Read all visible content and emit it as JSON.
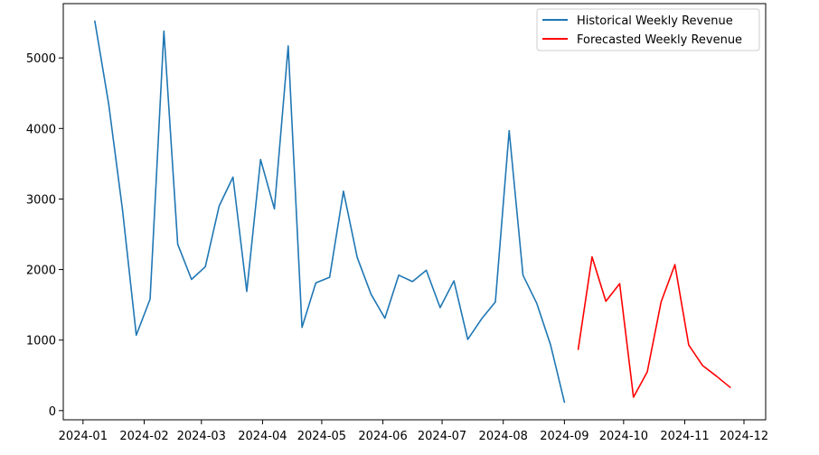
{
  "chart_data": {
    "type": "line",
    "xlabel": "",
    "ylabel": "",
    "x_axis_type": "date",
    "x_ticks": [
      "2024-01",
      "2024-02",
      "2024-03",
      "2024-04",
      "2024-05",
      "2024-06",
      "2024-07",
      "2024-08",
      "2024-09",
      "2024-10",
      "2024-11",
      "2024-12"
    ],
    "y_ticks": [
      0,
      1000,
      2000,
      3000,
      4000,
      5000
    ],
    "xlim": [
      "2023-12-22",
      "2024-12-12"
    ],
    "ylim": [
      -130,
      5770
    ],
    "grid": false,
    "legend_position": "top-right",
    "series": [
      {
        "name": "Historical Weekly Revenue",
        "color": "#1f77b4",
        "points": [
          [
            "2024-01-07",
            5520
          ],
          [
            "2024-01-14",
            4350
          ],
          [
            "2024-01-21",
            2850
          ],
          [
            "2024-01-28",
            1070
          ],
          [
            "2024-02-04",
            1580
          ],
          [
            "2024-02-11",
            5380
          ],
          [
            "2024-02-18",
            2360
          ],
          [
            "2024-02-25",
            1860
          ],
          [
            "2024-03-03",
            2040
          ],
          [
            "2024-03-10",
            2900
          ],
          [
            "2024-03-17",
            3310
          ],
          [
            "2024-03-24",
            1690
          ],
          [
            "2024-03-31",
            3560
          ],
          [
            "2024-04-07",
            2860
          ],
          [
            "2024-04-14",
            5170
          ],
          [
            "2024-04-21",
            1180
          ],
          [
            "2024-04-28",
            1810
          ],
          [
            "2024-05-05",
            1890
          ],
          [
            "2024-05-12",
            3110
          ],
          [
            "2024-05-19",
            2170
          ],
          [
            "2024-05-26",
            1650
          ],
          [
            "2024-06-02",
            1310
          ],
          [
            "2024-06-09",
            1920
          ],
          [
            "2024-06-16",
            1830
          ],
          [
            "2024-06-23",
            1990
          ],
          [
            "2024-06-30",
            1460
          ],
          [
            "2024-07-07",
            1840
          ],
          [
            "2024-07-14",
            1010
          ],
          [
            "2024-07-21",
            1300
          ],
          [
            "2024-07-28",
            1540
          ],
          [
            "2024-08-04",
            3970
          ],
          [
            "2024-08-11",
            1920
          ],
          [
            "2024-08-18",
            1520
          ],
          [
            "2024-08-25",
            930
          ],
          [
            "2024-09-01",
            120
          ]
        ]
      },
      {
        "name": "Forecasted Weekly Revenue",
        "color": "#ff0000",
        "points": [
          [
            "2024-09-08",
            870
          ],
          [
            "2024-09-15",
            2180
          ],
          [
            "2024-09-22",
            1550
          ],
          [
            "2024-09-29",
            1800
          ],
          [
            "2024-10-06",
            190
          ],
          [
            "2024-10-13",
            550
          ],
          [
            "2024-10-20",
            1540
          ],
          [
            "2024-10-27",
            2070
          ],
          [
            "2024-11-03",
            930
          ],
          [
            "2024-11-10",
            640
          ],
          [
            "2024-11-17",
            490
          ],
          [
            "2024-11-24",
            330
          ]
        ]
      }
    ]
  }
}
